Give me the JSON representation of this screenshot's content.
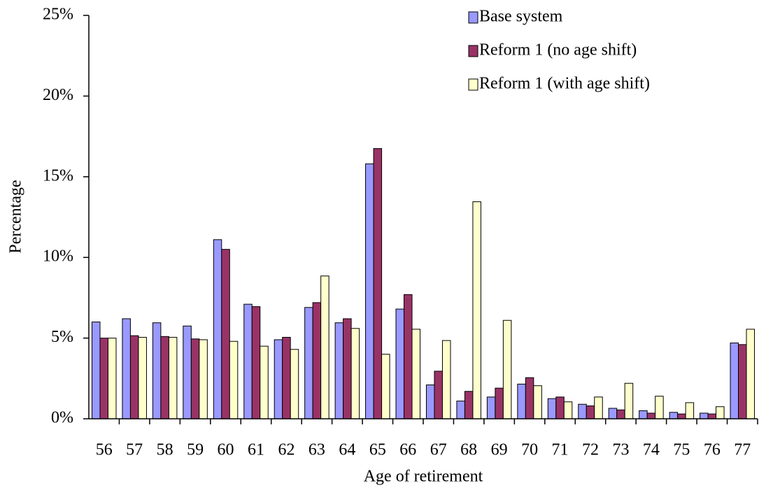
{
  "chart_data": {
    "type": "bar",
    "x_label": "Age of retirement",
    "y_label": "Percentage",
    "categories": [
      "56",
      "57",
      "58",
      "59",
      "60",
      "61",
      "62",
      "63",
      "64",
      "65",
      "66",
      "67",
      "68",
      "69",
      "70",
      "71",
      "72",
      "73",
      "74",
      "75",
      "76",
      "77"
    ],
    "series": [
      {
        "name": "Base system",
        "color": "#9999ff",
        "values": [
          6.0,
          6.2,
          5.95,
          5.75,
          11.1,
          7.1,
          4.9,
          6.9,
          5.95,
          15.8,
          6.8,
          2.1,
          1.1,
          1.35,
          2.15,
          1.25,
          0.9,
          0.65,
          0.5,
          0.4,
          0.35,
          4.7
        ]
      },
      {
        "name": "Reform 1 (no age shift)",
        "color": "#993366",
        "values": [
          5.0,
          5.15,
          5.1,
          4.95,
          10.5,
          6.95,
          5.05,
          7.2,
          6.2,
          16.75,
          7.7,
          2.95,
          1.7,
          1.9,
          2.55,
          1.35,
          0.8,
          0.55,
          0.35,
          0.3,
          0.3,
          4.6
        ]
      },
      {
        "name": "Reform 1 (with age shift)",
        "color": "#ffffcc",
        "values": [
          5.0,
          5.05,
          5.05,
          4.9,
          4.8,
          4.5,
          4.3,
          8.85,
          5.6,
          4.0,
          5.55,
          4.85,
          13.45,
          6.1,
          2.05,
          1.05,
          1.35,
          2.2,
          1.4,
          1.0,
          0.75,
          5.55
        ]
      }
    ],
    "ylim": [
      0,
      25
    ],
    "yticks": [
      {
        "value": 0,
        "label": "0%"
      },
      {
        "value": 5,
        "label": "5%"
      },
      {
        "value": 10,
        "label": "10%"
      },
      {
        "value": 15,
        "label": "15%"
      },
      {
        "value": 20,
        "label": "20%"
      },
      {
        "value": 25,
        "label": "25%"
      }
    ],
    "legend": "top-right"
  }
}
